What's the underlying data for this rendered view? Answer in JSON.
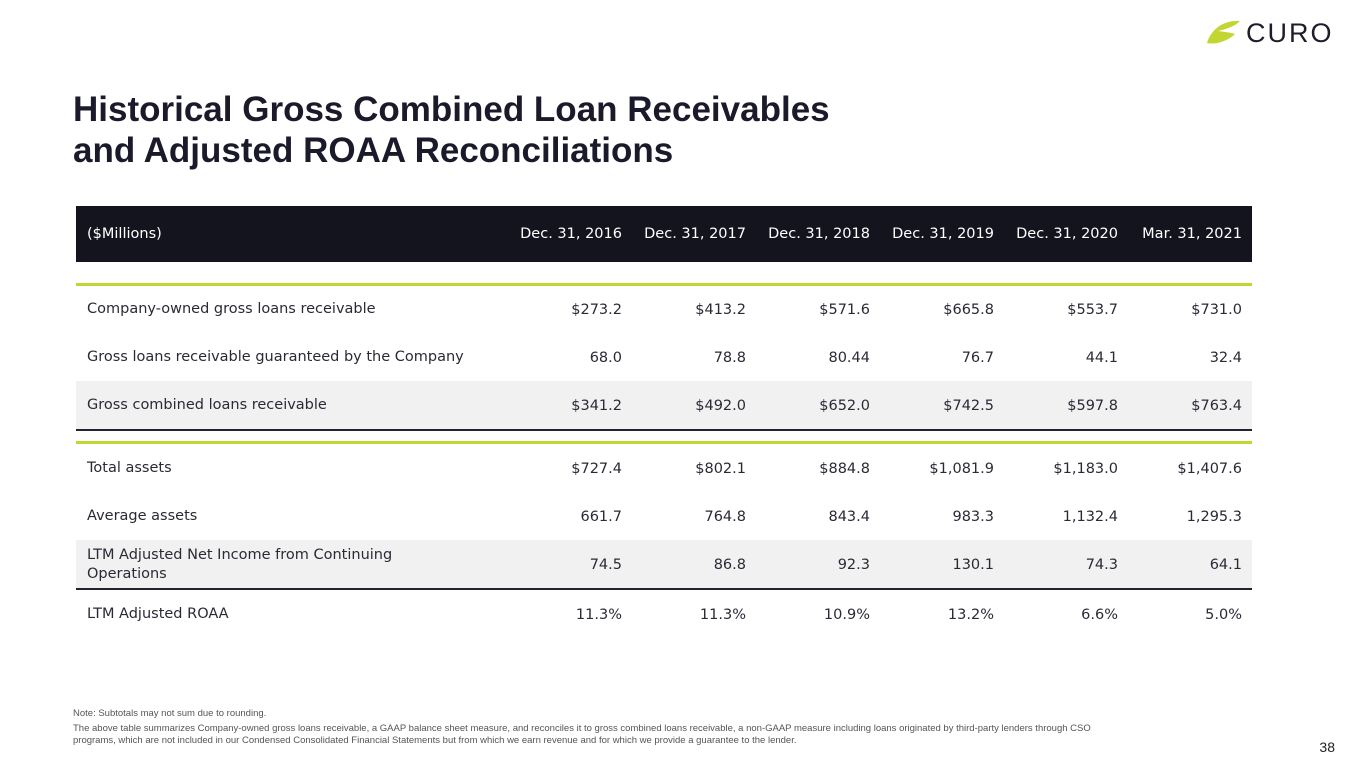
{
  "brand": {
    "name": "CURO",
    "accent": "#c2d530",
    "dark": "#14141f"
  },
  "title": {
    "line1": "Historical Gross Combined Loan Receivables",
    "line2": "and Adjusted ROAA Reconciliations"
  },
  "table": {
    "header_label": "($Millions)",
    "columns": [
      "Dec. 31, 2016",
      "Dec. 31, 2017",
      "Dec. 31, 2018",
      "Dec. 31, 2019",
      "Dec. 31, 2020",
      "Mar. 31, 2021"
    ],
    "rows": [
      {
        "label": "Company-owned gross loans receivable",
        "values": [
          "$273.2",
          "$413.2",
          "$571.6",
          "$665.8",
          "$553.7",
          "$731.0"
        ]
      },
      {
        "label": "Gross loans receivable guaranteed by the Company",
        "values": [
          "68.0",
          "78.8",
          "80.44",
          "76.7",
          "44.1",
          "32.4"
        ]
      },
      {
        "label": "Gross combined loans receivable",
        "values": [
          "$341.2",
          "$492.0",
          "$652.0",
          "$742.5",
          "$597.8",
          "$763.4"
        ]
      },
      {
        "label": "Total assets",
        "values": [
          "$727.4",
          "$802.1",
          "$884.8",
          "$1,081.9",
          "$1,183.0",
          "$1,407.6"
        ]
      },
      {
        "label": "Average assets",
        "values": [
          "661.7",
          "764.8",
          "843.4",
          "983.3",
          "1,132.4",
          "1,295.3"
        ]
      },
      {
        "label": "LTM Adjusted Net Income from Continuing Operations",
        "values": [
          "74.5",
          "86.8",
          "92.3",
          "130.1",
          "74.3",
          "64.1"
        ]
      },
      {
        "label": "LTM Adjusted ROAA",
        "values": [
          "11.3%",
          "11.3%",
          "10.9%",
          "13.2%",
          "6.6%",
          "5.0%"
        ]
      }
    ]
  },
  "notes": {
    "note1": "Note:  Subtotals may not sum due to rounding.",
    "note2": "The above table summarizes Company-owned gross loans receivable, a GAAP balance sheet measure, and reconciles it to gross combined loans receivable, a non-GAAP measure including loans originated by third-party lenders through CSO programs, which are not included in our Condensed Consolidated Financial Statements but from which we earn revenue and for which we provide a guarantee to the lender."
  },
  "page_number": "38"
}
